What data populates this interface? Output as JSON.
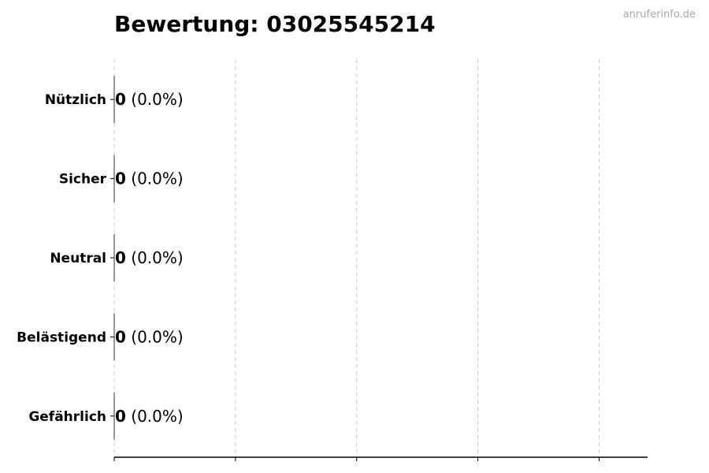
{
  "chart_data": {
    "type": "bar",
    "orientation": "horizontal",
    "title": "Bewertung: 03025545214",
    "watermark": "anruferinfo.de",
    "categories": [
      "Nützlich",
      "Sicher",
      "Neutral",
      "Belästigend",
      "Gefährlich"
    ],
    "values": [
      0,
      0,
      0,
      0,
      0
    ],
    "percent_labels": [
      "(0.0%)",
      "(0.0%)",
      "(0.0%)",
      "(0.0%)",
      "(0.0%)"
    ],
    "xlim": [
      0,
      4.4
    ],
    "x_ticks": [
      0,
      1,
      2,
      3,
      4
    ],
    "x_tick_labels_shown": false,
    "grid": "x dashed",
    "xlabel": "",
    "ylabel": "",
    "colors": {
      "bar_edge": "#333333",
      "grid": "#cccccc",
      "watermark": "#aaaaaa"
    }
  }
}
